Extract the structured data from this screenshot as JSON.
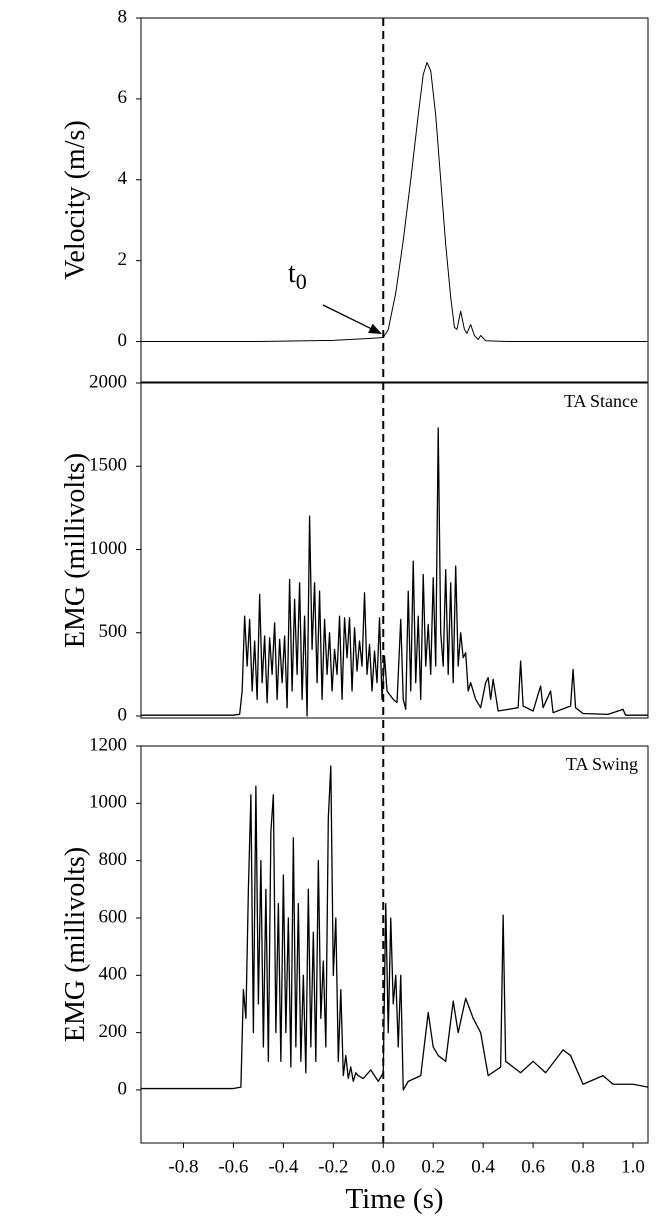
{
  "chart_data": [
    {
      "type": "line",
      "ylabel": "Velocity (m/s)",
      "color": "#000000",
      "xlim": [
        -0.97,
        1.06
      ],
      "ylim": [
        -1,
        8
      ],
      "yticks": [
        0,
        2,
        4,
        6,
        8
      ],
      "vline": 0,
      "annotation": {
        "text": "t",
        "subscript": "0"
      },
      "x": [
        -0.97,
        -0.5,
        -0.2,
        -0.05,
        0,
        0.02,
        0.05,
        0.08,
        0.11,
        0.14,
        0.16,
        0.175,
        0.19,
        0.21,
        0.23,
        0.25,
        0.27,
        0.285,
        0.295,
        0.31,
        0.325,
        0.335,
        0.35,
        0.365,
        0.38,
        0.39,
        0.41,
        0.5,
        1.06
      ],
      "values": [
        0,
        0,
        0.03,
        0.08,
        0.1,
        0.3,
        1.2,
        2.5,
        4.0,
        5.6,
        6.6,
        6.9,
        6.7,
        5.6,
        4.0,
        2.4,
        1.1,
        0.35,
        0.3,
        0.75,
        0.3,
        0.2,
        0.42,
        0.15,
        0.05,
        0.15,
        0.02,
        0,
        0
      ]
    },
    {
      "type": "line",
      "ylabel": "EMG (millivolts)",
      "panel_label": "TA Stance",
      "color": "#000000",
      "xlim": [
        -0.97,
        1.06
      ],
      "ylim": [
        -12,
        2000
      ],
      "yticks": [
        0,
        500,
        1000,
        1500,
        2000
      ],
      "x": [
        -0.97,
        -0.6,
        -0.575,
        -0.565,
        -0.555,
        -0.545,
        -0.535,
        -0.525,
        -0.515,
        -0.505,
        -0.495,
        -0.485,
        -0.475,
        -0.465,
        -0.455,
        -0.445,
        -0.435,
        -0.425,
        -0.415,
        -0.405,
        -0.395,
        -0.385,
        -0.375,
        -0.365,
        -0.355,
        -0.345,
        -0.335,
        -0.325,
        -0.315,
        -0.305,
        -0.295,
        -0.285,
        -0.275,
        -0.265,
        -0.255,
        -0.245,
        -0.235,
        -0.225,
        -0.215,
        -0.205,
        -0.195,
        -0.185,
        -0.175,
        -0.165,
        -0.155,
        -0.145,
        -0.135,
        -0.125,
        -0.115,
        -0.105,
        -0.095,
        -0.085,
        -0.075,
        -0.065,
        -0.055,
        -0.045,
        -0.035,
        -0.025,
        -0.015,
        -0.005,
        0.005,
        0.015,
        0.025,
        0.04,
        0.055,
        0.07,
        0.08,
        0.09,
        0.1,
        0.11,
        0.12,
        0.13,
        0.14,
        0.15,
        0.16,
        0.17,
        0.18,
        0.19,
        0.2,
        0.21,
        0.22,
        0.23,
        0.24,
        0.25,
        0.26,
        0.27,
        0.28,
        0.29,
        0.3,
        0.31,
        0.32,
        0.33,
        0.34,
        0.35,
        0.37,
        0.39,
        0.41,
        0.42,
        0.43,
        0.44,
        0.46,
        0.5,
        0.54,
        0.55,
        0.56,
        0.6,
        0.63,
        0.64,
        0.67,
        0.68,
        0.75,
        0.76,
        0.77,
        0.8,
        0.9,
        0.96,
        0.97,
        1.06
      ],
      "values": [
        5,
        5,
        10,
        150,
        600,
        300,
        580,
        150,
        450,
        100,
        730,
        200,
        480,
        80,
        470,
        250,
        560,
        100,
        460,
        200,
        480,
        50,
        820,
        150,
        700,
        250,
        800,
        100,
        600,
        0,
        1200,
        400,
        800,
        200,
        750,
        100,
        580,
        250,
        500,
        150,
        400,
        250,
        600,
        100,
        590,
        350,
        590,
        150,
        530,
        270,
        450,
        300,
        740,
        250,
        430,
        150,
        390,
        200,
        590,
        100,
        360,
        150,
        130,
        100,
        80,
        580,
        100,
        40,
        750,
        150,
        930,
        200,
        600,
        100,
        850,
        300,
        550,
        250,
        830,
        300,
        1730,
        500,
        300,
        880,
        250,
        800,
        200,
        900,
        300,
        500,
        350,
        380,
        150,
        200,
        100,
        50,
        200,
        230,
        100,
        220,
        30,
        40,
        50,
        330,
        60,
        30,
        180,
        50,
        150,
        20,
        60,
        280,
        50,
        15,
        10,
        40,
        5,
        5
      ]
    },
    {
      "type": "line",
      "ylabel": "EMG (millivolts)",
      "panel_label": "TA Swing",
      "color": "#000000",
      "xlabel": "Time (s)",
      "xlim": [
        -0.97,
        1.06
      ],
      "ylim": [
        -185,
        1200
      ],
      "yticks": [
        0,
        200,
        400,
        600,
        800,
        1000,
        1200
      ],
      "xticks": [
        -0.8,
        -0.6,
        -0.4,
        -0.2,
        {
          "value": 0,
          "label": "0.0"
        },
        0.2,
        0.4,
        0.6,
        0.8,
        {
          "value": 1,
          "label": "1.0"
        }
      ],
      "x": [
        -0.97,
        -0.6,
        -0.57,
        -0.56,
        -0.55,
        -0.54,
        -0.53,
        -0.52,
        -0.51,
        -0.5,
        -0.49,
        -0.48,
        -0.47,
        -0.46,
        -0.45,
        -0.44,
        -0.43,
        -0.42,
        -0.41,
        -0.4,
        -0.39,
        -0.38,
        -0.37,
        -0.36,
        -0.35,
        -0.34,
        -0.33,
        -0.32,
        -0.31,
        -0.3,
        -0.29,
        -0.28,
        -0.27,
        -0.26,
        -0.25,
        -0.24,
        -0.23,
        -0.22,
        -0.21,
        -0.2,
        -0.19,
        -0.18,
        -0.17,
        -0.16,
        -0.15,
        -0.14,
        -0.13,
        -0.12,
        -0.11,
        -0.1,
        -0.08,
        -0.05,
        -0.02,
        0,
        0.01,
        0.02,
        0.03,
        0.04,
        0.05,
        0.06,
        0.07,
        0.08,
        0.1,
        0.15,
        0.18,
        0.2,
        0.22,
        0.25,
        0.28,
        0.3,
        0.33,
        0.36,
        0.39,
        0.42,
        0.47,
        0.48,
        0.49,
        0.55,
        0.6,
        0.65,
        0.72,
        0.75,
        0.8,
        0.88,
        0.92,
        1.0,
        1.06
      ],
      "values": [
        5,
        5,
        10,
        350,
        250,
        700,
        1030,
        200,
        1060,
        300,
        800,
        150,
        700,
        100,
        900,
        1030,
        200,
        650,
        100,
        750,
        200,
        600,
        80,
        880,
        150,
        650,
        100,
        400,
        60,
        700,
        150,
        550,
        100,
        800,
        250,
        450,
        150,
        950,
        1130,
        400,
        600,
        100,
        350,
        50,
        120,
        40,
        80,
        30,
        60,
        50,
        40,
        70,
        30,
        60,
        650,
        200,
        600,
        300,
        400,
        150,
        400,
        0,
        30,
        50,
        270,
        150,
        120,
        100,
        310,
        200,
        320,
        250,
        200,
        50,
        80,
        610,
        100,
        60,
        100,
        60,
        140,
        120,
        20,
        50,
        20,
        20,
        10
      ]
    }
  ]
}
